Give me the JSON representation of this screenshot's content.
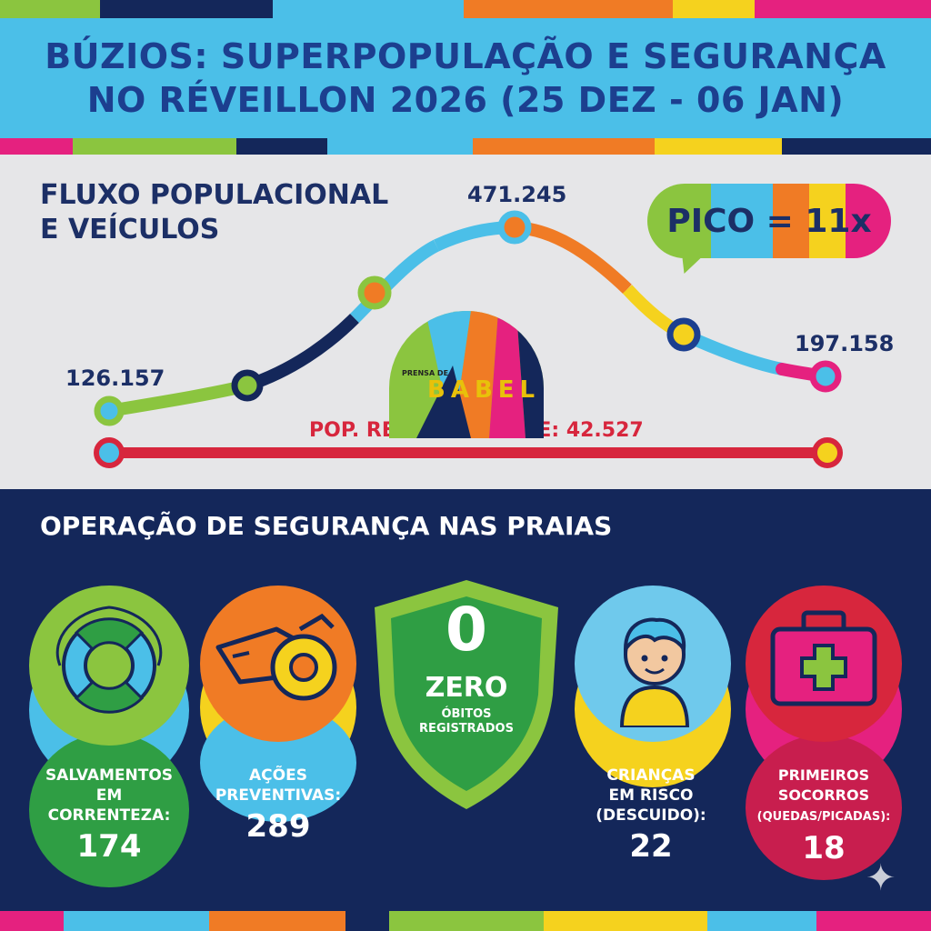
{
  "header": {
    "title_line1": "BÚZIOS: SUPERPOPULAÇÃO E SEGURANÇA",
    "title_line2": "NO RÉVEILLON 2026 (25 DEZ - 06 JAN)"
  },
  "flow": {
    "title_line1": "FLUXO POPULACIONAL",
    "title_line2": "E VEÍCULOS",
    "peak_badge": "PICO = 11x",
    "start_label": "126.157",
    "peak_label": "471.245",
    "end_label": "197.158",
    "resident_label": "POP. RESIDENTE IBGE: 42.527"
  },
  "chart_data": {
    "type": "line",
    "series": [
      {
        "values": [
          126157,
          null,
          null,
          471245,
          null,
          197158
        ]
      },
      {
        "values": [
          42527,
          42527
        ]
      }
    ]
  },
  "safety": {
    "title": "OPERAÇÃO DE SEGURANÇA NAS PRAIAS",
    "cards": [
      {
        "label_lines": [
          "SALVAMENTOS",
          "EM",
          "CORRENTEZA:"
        ],
        "value": "174",
        "icon": "lifebuoy-icon"
      },
      {
        "label_lines": [
          "AÇÕES",
          "PREVENTIVAS:"
        ],
        "value": "289",
        "icon": "whistle-icon"
      },
      {
        "label_lines": [
          "CRIANÇAS",
          "EM RISCO",
          "(DESCUIDO):"
        ],
        "value": "22",
        "icon": "child-icon"
      },
      {
        "label_lines": [
          "PRIMEIROS",
          "SOCORROS",
          "(QUEDAS/PICADAS):"
        ],
        "value": "18",
        "icon": "first-aid-kit-icon"
      }
    ],
    "shield": {
      "big": "0",
      "word": "ZERO",
      "line1": "ÓBITOS",
      "line2": "REGISTRADOS",
      "icon": "shield-icon"
    }
  },
  "logo": {
    "small": "PRENSA DE",
    "big": "BABEL"
  },
  "colors": {
    "lime": "#8bc53f",
    "sky": "#4bbfe8",
    "navy": "#14275a",
    "orange": "#f07b25",
    "yellow": "#f5d21e",
    "magenta": "#e5217f",
    "red": "#d7263d",
    "green": "#2f9e44"
  }
}
